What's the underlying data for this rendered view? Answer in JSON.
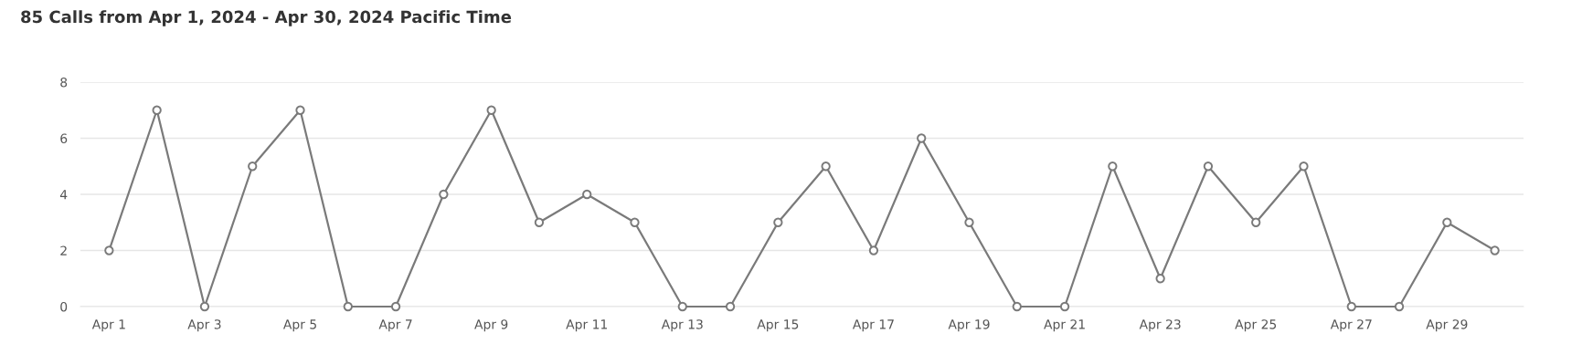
{
  "chart_data": {
    "type": "line",
    "title": "85 Calls from Apr 1, 2024 - Apr 30, 2024 Pacific Time",
    "categories": [
      "Apr 1",
      null,
      "Apr 3",
      null,
      "Apr 5",
      null,
      "Apr 7",
      null,
      "Apr 9",
      null,
      "Apr 11",
      null,
      "Apr 13",
      null,
      "Apr 15",
      null,
      "Apr 17",
      null,
      "Apr 19",
      null,
      "Apr 21",
      null,
      "Apr 23",
      null,
      "Apr 25",
      null,
      "Apr 27",
      null,
      "Apr 29",
      null
    ],
    "values": [
      2,
      7,
      0,
      5,
      7,
      0,
      0,
      4,
      7,
      3,
      4,
      3,
      0,
      0,
      3,
      5,
      2,
      6,
      3,
      0,
      0,
      5,
      1,
      5,
      3,
      5,
      0,
      0,
      3,
      2
    ],
    "color": "#7a7a7a",
    "ylim": [
      0,
      8
    ],
    "yticks": [
      0,
      2,
      4,
      6,
      8
    ],
    "grid": "y",
    "marker": "circle",
    "line_style": "solid"
  }
}
